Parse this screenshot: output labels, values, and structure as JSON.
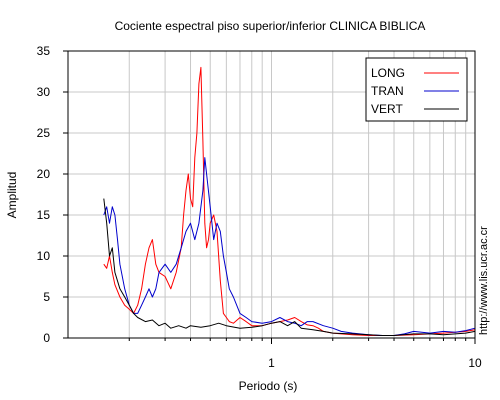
{
  "chart_data": {
    "type": "line",
    "title": "Cociente espectral piso superior/inferior  CLINICA BIBLICA",
    "xlabel": "Periodo (s)",
    "ylabel": "Amplitud",
    "x_scale": "log",
    "xlim": [
      0.1,
      10
    ],
    "ylim": [
      0,
      35
    ],
    "x_ticks": [
      1,
      10
    ],
    "x_tick_labels": [
      "1",
      "10"
    ],
    "y_ticks": [
      0,
      5,
      10,
      15,
      20,
      25,
      30,
      35
    ],
    "y_tick_labels": [
      "0",
      "5",
      "10",
      "15",
      "20",
      "25",
      "30",
      "35"
    ],
    "grid": true,
    "legend_position": "top-right",
    "series": [
      {
        "name": "LONG",
        "color": "#ff0000",
        "x": [
          0.15,
          0.155,
          0.16,
          0.165,
          0.17,
          0.18,
          0.19,
          0.2,
          0.21,
          0.22,
          0.23,
          0.24,
          0.25,
          0.26,
          0.27,
          0.28,
          0.3,
          0.32,
          0.34,
          0.36,
          0.37,
          0.38,
          0.39,
          0.4,
          0.41,
          0.42,
          0.43,
          0.44,
          0.45,
          0.46,
          0.47,
          0.48,
          0.49,
          0.5,
          0.52,
          0.54,
          0.56,
          0.58,
          0.6,
          0.62,
          0.65,
          0.7,
          0.75,
          0.8,
          0.9,
          1.0,
          1.1,
          1.2,
          1.3,
          1.4,
          1.5,
          1.6,
          1.7,
          1.8,
          2.0,
          2.2,
          2.5,
          3.0,
          3.5,
          4.0,
          5.0,
          6.0,
          7.0,
          8.0,
          9.0,
          10.0
        ],
        "y": [
          9,
          8.5,
          10,
          8,
          6.5,
          5,
          4,
          3.5,
          3,
          4,
          6,
          9,
          11,
          12,
          9,
          8,
          7.5,
          6,
          8,
          11,
          15,
          18,
          20,
          17,
          16,
          22,
          25,
          31,
          33,
          24,
          14,
          11,
          12,
          14,
          15,
          13,
          7,
          3,
          2.5,
          2,
          1.8,
          2.5,
          2,
          1.5,
          1.5,
          1.8,
          2,
          2.2,
          2.5,
          2,
          1.6,
          1.5,
          1.2,
          0.8,
          0.6,
          0.5,
          0.4,
          0.3,
          0.3,
          0.3,
          0.4,
          0.5,
          0.6,
          0.7,
          0.8,
          1.0
        ]
      },
      {
        "name": "TRAN",
        "color": "#0000cc",
        "x": [
          0.15,
          0.155,
          0.16,
          0.165,
          0.17,
          0.175,
          0.18,
          0.19,
          0.2,
          0.21,
          0.22,
          0.23,
          0.24,
          0.25,
          0.26,
          0.27,
          0.28,
          0.3,
          0.32,
          0.34,
          0.36,
          0.38,
          0.4,
          0.42,
          0.44,
          0.46,
          0.47,
          0.48,
          0.5,
          0.52,
          0.54,
          0.56,
          0.58,
          0.6,
          0.62,
          0.65,
          0.7,
          0.75,
          0.8,
          0.9,
          1.0,
          1.1,
          1.2,
          1.3,
          1.4,
          1.5,
          1.6,
          1.8,
          2.0,
          2.2,
          2.5,
          3.0,
          3.5,
          4.0,
          4.5,
          5.0,
          6.0,
          7.0,
          8.0,
          9.0,
          10.0
        ],
        "y": [
          15,
          16,
          14,
          16,
          15,
          12,
          9,
          6,
          4,
          3,
          3,
          4,
          5,
          6,
          5,
          6,
          8,
          9,
          8,
          9,
          11,
          13,
          14,
          12,
          14,
          18,
          22,
          20,
          16,
          12,
          14,
          13,
          10,
          8,
          6,
          5,
          3,
          2.5,
          2,
          1.8,
          2,
          2.5,
          2,
          1.8,
          1.5,
          2,
          2,
          1.5,
          1.2,
          0.8,
          0.6,
          0.4,
          0.3,
          0.3,
          0.5,
          0.8,
          0.6,
          0.8,
          0.7,
          0.9,
          1.2
        ]
      },
      {
        "name": "VERT",
        "color": "#000000",
        "x": [
          0.15,
          0.155,
          0.16,
          0.165,
          0.17,
          0.18,
          0.19,
          0.2,
          0.21,
          0.22,
          0.24,
          0.26,
          0.28,
          0.3,
          0.32,
          0.35,
          0.38,
          0.4,
          0.45,
          0.5,
          0.55,
          0.6,
          0.7,
          0.8,
          0.9,
          1.0,
          1.1,
          1.2,
          1.3,
          1.4,
          1.6,
          1.8,
          2.0,
          2.5,
          3.0,
          3.5,
          4.0,
          5.0,
          6.0,
          7.0,
          8.0,
          9.0,
          10.0
        ],
        "y": [
          17,
          14,
          10,
          11,
          8,
          6,
          5,
          4,
          3,
          2.5,
          2,
          2.2,
          1.5,
          1.8,
          1.2,
          1.5,
          1.2,
          1.5,
          1.3,
          1.5,
          1.8,
          1.5,
          1.2,
          1.3,
          1.5,
          1.8,
          2,
          1.5,
          2,
          1.2,
          1.0,
          0.8,
          0.6,
          0.5,
          0.4,
          0.3,
          0.3,
          0.5,
          0.5,
          0.4,
          0.5,
          0.6,
          0.8
        ]
      }
    ]
  },
  "watermark": "http://www.lis.ucr.ac.cr"
}
